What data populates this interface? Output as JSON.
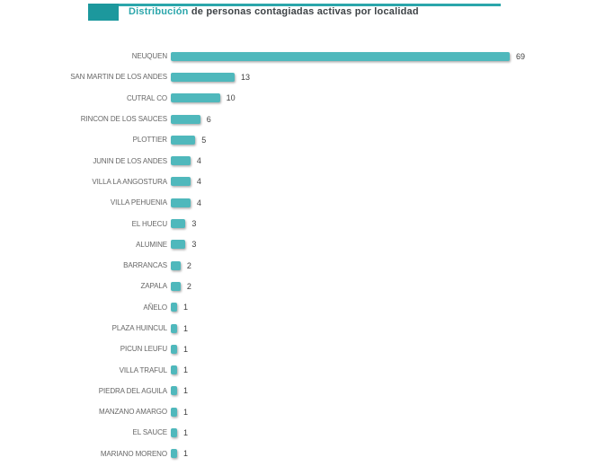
{
  "header": {
    "title_highlight": "Distribución",
    "title_rest": " de personas contagiadas activas por localidad"
  },
  "colors": {
    "bar_fill": "#4FB8BC",
    "accent_teal": "#2BA6AB",
    "accent_square": "#1C989D",
    "title_text": "#3E4347",
    "category_label_text": "#666666",
    "value_label_text": "#3F3F3F",
    "background": "#FFFFFF"
  },
  "chart_data": {
    "type": "bar",
    "orientation": "horizontal",
    "title": "Distribución de personas contagiadas activas por localidad",
    "xlabel": "",
    "ylabel": "",
    "xlim": [
      0,
      69
    ],
    "grid": false,
    "legend": false,
    "value_labels_shown": true,
    "bar_color": "#4FB8BC",
    "categories": [
      "NEUQUEN",
      "SAN MARTIN DE LOS ANDES",
      "CUTRAL CO",
      "RINCON DE LOS SAUCES",
      "PLOTTIER",
      "JUNIN DE LOS ANDES",
      "VILLA LA ANGOSTURA",
      "VILLA PEHUENIA",
      "EL HUECU",
      "ALUMINE",
      "BARRANCAS",
      "ZAPALA",
      "AÑELO",
      "PLAZA HUINCUL",
      "PICUN LEUFU",
      "VILLA TRAFUL",
      "PIEDRA DEL AGUILA",
      "MANZANO AMARGO",
      "EL SAUCE",
      "MARIANO MORENO"
    ],
    "values": [
      69,
      13,
      10,
      6,
      5,
      4,
      4,
      4,
      3,
      3,
      2,
      2,
      1,
      1,
      1,
      1,
      1,
      1,
      1,
      1
    ]
  }
}
